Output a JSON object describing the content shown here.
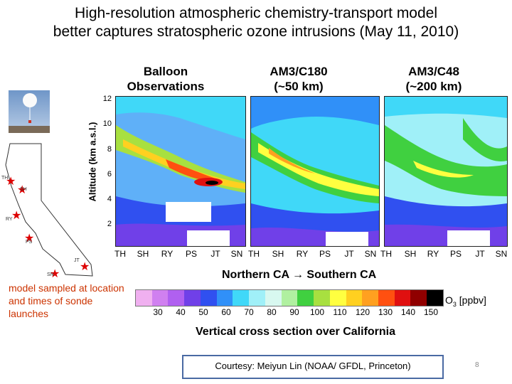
{
  "slide": {
    "title_line1": "High-resolution atmospheric chemistry-transport model",
    "title_line2": "better captures stratospheric ozone intrusions (May 11, 2010)",
    "page_number": "8"
  },
  "panels": [
    {
      "title_line1": "Balloon",
      "title_line2": "Observations"
    },
    {
      "title_line1": "AM3/C180",
      "title_line2": "(~50 km)"
    },
    {
      "title_line1": "AM3/C48",
      "title_line2": "(~200 km)"
    }
  ],
  "y_axis": {
    "label": "Altitude (km a.s.l.)",
    "ticks": [
      "12",
      "10",
      "8",
      "6",
      "4",
      "2"
    ]
  },
  "x_axis": {
    "ticks": [
      "TH",
      "SH",
      "RY",
      "PS",
      "JT",
      "SN"
    ],
    "direction_from": "Northern CA",
    "arrow": "→",
    "direction_to": "Southern CA"
  },
  "colorbar": {
    "label": "O",
    "label_sub": "3",
    "label_unit": "[ppbv]",
    "ticks": [
      "30",
      "40",
      "50",
      "60",
      "70",
      "80",
      "90",
      "100",
      "110",
      "120",
      "130",
      "140",
      "150"
    ],
    "colors": [
      "#f0b0f0",
      "#d080f0",
      "#b060f0",
      "#7040e8",
      "#3050f0",
      "#3090f8",
      "#40d8f8",
      "#a0f0f8",
      "#d8f8f0",
      "#b0f0a0",
      "#40d040",
      "#a8e040",
      "#ffff40",
      "#ffd020",
      "#ffa020",
      "#ff5010",
      "#e01010",
      "#900000",
      "#000000"
    ]
  },
  "subtitle": "Vertical cross section over California",
  "map_note": "model sampled at location and times of sonde launches",
  "map_labels": [
    "TH",
    "SH",
    "RY",
    "PS",
    "JT",
    "SN"
  ],
  "credit": "Courtesy: Meiyun Lin (NOAA/ GFDL, Princeton)",
  "colors": {
    "note": "#cc3300",
    "station_star": "#dd0000",
    "credit_border": "#4a6aa3"
  }
}
